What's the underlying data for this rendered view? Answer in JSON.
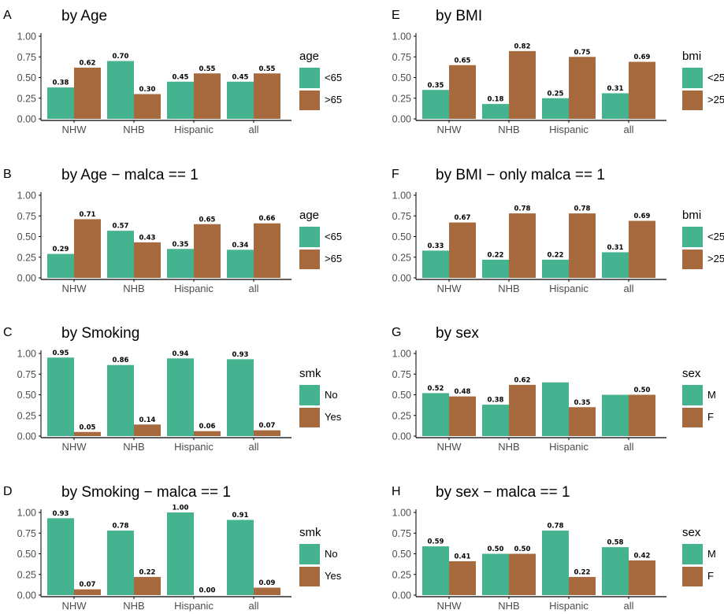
{
  "colors": {
    "series1": "#45B38F",
    "series2": "#A66A3E",
    "axis": "#000000",
    "tick_text": "#4d4d4d"
  },
  "chart_data": [
    {
      "type": "bar",
      "panel": "A",
      "title": "by Age",
      "ylim": [
        0,
        1
      ],
      "yticks": [
        "0.00",
        "0.25",
        "0.50",
        "0.75",
        "1.00"
      ],
      "categories": [
        "NHW",
        "NHB",
        "Hispanic",
        "all"
      ],
      "legend_title": "age",
      "legend_position": "right",
      "series": [
        {
          "name": "<65",
          "values": [
            0.38,
            0.7,
            0.45,
            0.45
          ],
          "labels": [
            "0.38",
            "0.70",
            "0.45",
            "0.45"
          ]
        },
        {
          "name": ">65",
          "values": [
            0.62,
            0.3,
            0.55,
            0.55
          ],
          "labels": [
            "0.62",
            "0.30",
            "0.55",
            "0.55"
          ]
        }
      ]
    },
    {
      "type": "bar",
      "panel": "B",
      "title": "by Age − malca == 1",
      "ylim": [
        0,
        1
      ],
      "yticks": [
        "0.00",
        "0.25",
        "0.50",
        "0.75",
        "1.00"
      ],
      "categories": [
        "NHW",
        "NHB",
        "Hispanic",
        "all"
      ],
      "legend_title": "age",
      "legend_position": "right",
      "series": [
        {
          "name": "<65",
          "values": [
            0.29,
            0.57,
            0.35,
            0.34
          ],
          "labels": [
            "0.29",
            "0.57",
            "0.35",
            "0.34"
          ]
        },
        {
          "name": ">65",
          "values": [
            0.71,
            0.43,
            0.65,
            0.66
          ],
          "labels": [
            "0.71",
            "0.43",
            "0.65",
            "0.66"
          ]
        }
      ]
    },
    {
      "type": "bar",
      "panel": "C",
      "title": "by Smoking",
      "ylim": [
        0,
        1
      ],
      "yticks": [
        "0.00",
        "0.25",
        "0.50",
        "0.75",
        "1.00"
      ],
      "categories": [
        "NHW",
        "NHB",
        "Hispanic",
        "all"
      ],
      "legend_title": "smk",
      "legend_position": "right",
      "series": [
        {
          "name": "No",
          "values": [
            0.95,
            0.86,
            0.94,
            0.93
          ],
          "labels": [
            "0.95",
            "0.86",
            "0.94",
            "0.93"
          ]
        },
        {
          "name": "Yes",
          "values": [
            0.05,
            0.14,
            0.06,
            0.07
          ],
          "labels": [
            "0.05",
            "0.14",
            "0.06",
            "0.07"
          ]
        }
      ]
    },
    {
      "type": "bar",
      "panel": "D",
      "title": "by Smoking − malca == 1",
      "ylim": [
        0,
        1
      ],
      "yticks": [
        "0.00",
        "0.25",
        "0.50",
        "0.75",
        "1.00"
      ],
      "categories": [
        "NHW",
        "NHB",
        "Hispanic",
        "all"
      ],
      "legend_title": "smk",
      "legend_position": "right",
      "series": [
        {
          "name": "No",
          "values": [
            0.93,
            0.78,
            1.0,
            0.91
          ],
          "labels": [
            "0.93",
            "0.78",
            "1.00",
            "0.91"
          ]
        },
        {
          "name": "Yes",
          "values": [
            0.07,
            0.22,
            0.0,
            0.09
          ],
          "labels": [
            "0.07",
            "0.22",
            "0.00",
            "0.09"
          ]
        }
      ]
    },
    {
      "type": "bar",
      "panel": "E",
      "title": "by BMI",
      "ylim": [
        0,
        1
      ],
      "yticks": [
        "0.00",
        "0.25",
        "0.50",
        "0.75",
        "1.00"
      ],
      "categories": [
        "NHW",
        "NHB",
        "Hispanic",
        "all"
      ],
      "legend_title": "bmi",
      "legend_position": "right",
      "series": [
        {
          "name": "<25",
          "values": [
            0.35,
            0.18,
            0.25,
            0.31
          ],
          "labels": [
            "0.35",
            "0.18",
            "0.25",
            "0.31"
          ]
        },
        {
          "name": ">25",
          "values": [
            0.65,
            0.82,
            0.75,
            0.69
          ],
          "labels": [
            "0.65",
            "0.82",
            "0.75",
            "0.69"
          ]
        }
      ]
    },
    {
      "type": "bar",
      "panel": "F",
      "title": "by BMI − only malca == 1",
      "ylim": [
        0,
        1
      ],
      "yticks": [
        "0.00",
        "0.25",
        "0.50",
        "0.75",
        "1.00"
      ],
      "categories": [
        "NHW",
        "NHB",
        "Hispanic",
        "all"
      ],
      "legend_title": "bmi",
      "legend_position": "right",
      "series": [
        {
          "name": "<25",
          "values": [
            0.33,
            0.22,
            0.22,
            0.31
          ],
          "labels": [
            "0.33",
            "0.22",
            "0.22",
            "0.31"
          ]
        },
        {
          "name": ">25",
          "values": [
            0.67,
            0.78,
            0.78,
            0.69
          ],
          "labels": [
            "0.67",
            "0.78",
            "0.78",
            "0.69"
          ]
        }
      ]
    },
    {
      "type": "bar",
      "panel": "G",
      "title": "by sex",
      "ylim": [
        0,
        1
      ],
      "yticks": [
        "0.00",
        "0.25",
        "0.50",
        "0.75",
        "1.00"
      ],
      "categories": [
        "NHW",
        "NHB",
        "Hispanic",
        "all"
      ],
      "legend_title": "sex",
      "legend_position": "right",
      "series": [
        {
          "name": "M",
          "values": [
            0.52,
            0.38,
            0.65,
            0.5
          ],
          "labels": [
            "0.52",
            "0.38",
            "",
            ""
          ]
        },
        {
          "name": "F",
          "values": [
            0.48,
            0.62,
            0.35,
            0.5
          ],
          "labels": [
            "0.48",
            "0.62",
            "0.35",
            "0.50"
          ]
        }
      ]
    },
    {
      "type": "bar",
      "panel": "H",
      "title": "by sex − malca == 1",
      "ylim": [
        0,
        1
      ],
      "yticks": [
        "0.00",
        "0.25",
        "0.50",
        "0.75",
        "1.00"
      ],
      "categories": [
        "NHW",
        "NHB",
        "Hispanic",
        "all"
      ],
      "legend_title": "sex",
      "legend_position": "right",
      "series": [
        {
          "name": "M",
          "values": [
            0.59,
            0.5,
            0.78,
            0.58
          ],
          "labels": [
            "0.59",
            "0.50",
            "0.78",
            "0.58"
          ]
        },
        {
          "name": "F",
          "values": [
            0.41,
            0.5,
            0.22,
            0.42
          ],
          "labels": [
            "0.41",
            "0.50",
            "0.22",
            "0.42"
          ]
        }
      ]
    }
  ]
}
